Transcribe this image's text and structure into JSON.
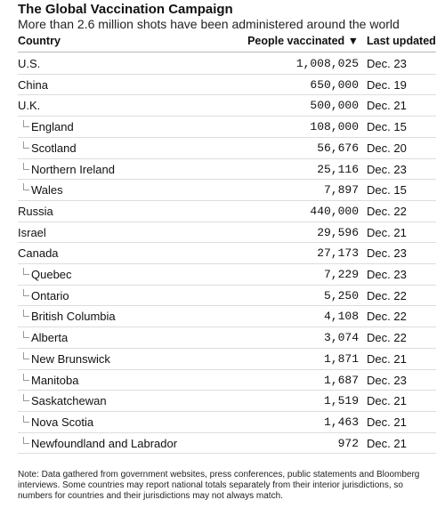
{
  "header": {
    "title": "The Global Vaccination Campaign",
    "subtitle": "More than 2.6 million shots have been administered around the world"
  },
  "table": {
    "columns": [
      "Country",
      "People vaccinated ▼",
      "Last updated"
    ],
    "rows": [
      {
        "country": "U.S.",
        "vaccinated": "1,008,025",
        "updated": "Dec. 23"
      },
      {
        "country": "China",
        "vaccinated": "650,000",
        "updated": "Dec. 19"
      },
      {
        "country": "U.K.",
        "vaccinated": "500,000",
        "updated": "Dec. 21",
        "subrows": [
          {
            "country": "England",
            "vaccinated": "108,000",
            "updated": "Dec. 15"
          },
          {
            "country": "Scotland",
            "vaccinated": "56,676",
            "updated": "Dec. 20"
          },
          {
            "country": "Northern Ireland",
            "vaccinated": "25,116",
            "updated": "Dec. 23"
          },
          {
            "country": "Wales",
            "vaccinated": "7,897",
            "updated": "Dec. 15"
          }
        ]
      },
      {
        "country": "Russia",
        "vaccinated": "440,000",
        "updated": "Dec. 22"
      },
      {
        "country": "Israel",
        "vaccinated": "29,596",
        "updated": "Dec. 21"
      },
      {
        "country": "Canada",
        "vaccinated": "27,173",
        "updated": "Dec. 23",
        "subrows": [
          {
            "country": "Quebec",
            "vaccinated": "7,229",
            "updated": "Dec. 23"
          },
          {
            "country": "Ontario",
            "vaccinated": "5,250",
            "updated": "Dec. 22"
          },
          {
            "country": "British Columbia",
            "vaccinated": "4,108",
            "updated": "Dec. 22"
          },
          {
            "country": "Alberta",
            "vaccinated": "3,074",
            "updated": "Dec. 22"
          },
          {
            "country": "New Brunswick",
            "vaccinated": "1,871",
            "updated": "Dec. 21"
          },
          {
            "country": "Manitoba",
            "vaccinated": "1,687",
            "updated": "Dec. 23"
          },
          {
            "country": "Saskatchewan",
            "vaccinated": "1,519",
            "updated": "Dec. 21"
          },
          {
            "country": "Nova Scotia",
            "vaccinated": "1,463",
            "updated": "Dec. 21"
          },
          {
            "country": "Newfoundland and Labrador",
            "vaccinated": "972",
            "updated": "Dec. 21"
          }
        ]
      }
    ]
  },
  "note": "Note: Data gathered from government websites, press conferences, public statements and Bloomberg interviews. Some countries may report national totals separately from their interior jurisdictions, so numbers for countries and their jurisdictions may not always match."
}
